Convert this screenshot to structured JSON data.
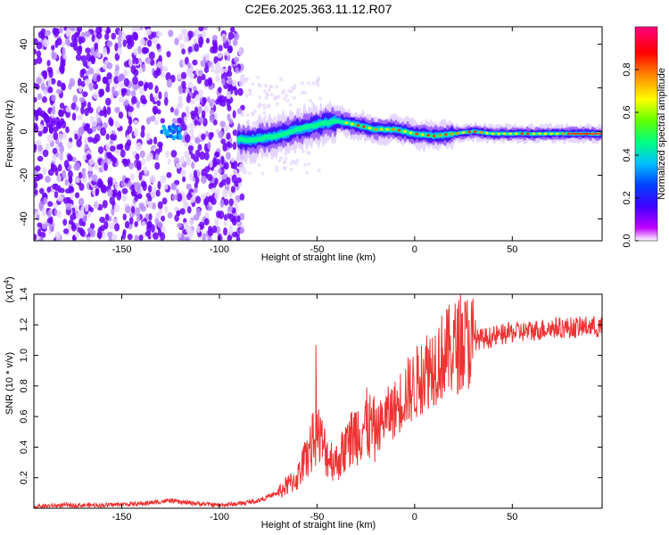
{
  "figure_title": "C2E6.2025.363.11.12.R07",
  "chart_data": [
    {
      "type": "heatmap",
      "title": "C2E6.2025.363.11.12.R07",
      "xlabel": "Height of straight line (km)",
      "ylabel": "Frequency (Hz)",
      "xlim": [
        -195,
        96
      ],
      "ylim": [
        -50,
        48
      ],
      "xticks": [
        -150,
        -100,
        -50,
        0,
        50
      ],
      "yticks": [
        -40,
        -20,
        0,
        20,
        40
      ],
      "xtick_labels": [
        "-150",
        "-100",
        "-50",
        "0",
        "50"
      ],
      "ytick_labels": [
        "-40",
        "-20",
        "0",
        "20",
        "40"
      ],
      "colorbar": {
        "label": "Normalized spectral amplitude",
        "range": [
          0,
          1
        ],
        "ticks": [
          0.0,
          0.2,
          0.4,
          0.6,
          0.8
        ],
        "tick_labels": [
          "0.0",
          "0.2",
          "0.4",
          "0.6",
          "0.8"
        ],
        "colormap": [
          "#ffffff",
          "#a000ff",
          "#3a00ff",
          "#0040ff",
          "#00c8ff",
          "#00ff80",
          "#80ff00",
          "#ffff00",
          "#ff8000",
          "#ff0000",
          "#ff0080"
        ]
      },
      "ridge": {
        "description_points_x": [
          -130,
          -85,
          -70,
          -60,
          -50,
          -40,
          -30,
          -20,
          -10,
          0,
          10,
          20,
          30,
          40,
          50,
          60,
          70,
          80,
          95
        ],
        "description_points_y": [
          -1,
          -4,
          -2,
          1,
          3,
          5,
          3,
          1,
          1,
          -1,
          -2,
          -1,
          0,
          -1,
          -1,
          -1,
          -1,
          -1,
          -1
        ]
      },
      "noise_region_end_km": -88,
      "gap_region_km": [
        -130,
        -122
      ]
    },
    {
      "type": "line",
      "xlabel": "Height of straight line (km)",
      "ylabel": "SNR (10 * v/v)",
      "y_scale_label": "(x10",
      "y_scale_exponent": "4",
      "xlim": [
        -195,
        96
      ],
      "ylim": [
        0,
        1.4
      ],
      "xticks": [
        -150,
        -100,
        -50,
        0,
        50
      ],
      "yticks": [
        0.2,
        0.4,
        0.6,
        0.8,
        1.0,
        1.2,
        1.4
      ],
      "xtick_labels": [
        "-150",
        "-100",
        "-50",
        "0",
        "50"
      ],
      "ytick_labels": [
        "0.2",
        "0.4",
        "0.6",
        "0.8",
        "1.0",
        "1.2",
        "1.4"
      ],
      "series": [
        {
          "name": "SNR",
          "color": "#ee3333",
          "x": [
            -195,
            -180,
            -160,
            -140,
            -125,
            -120,
            -110,
            -100,
            -90,
            -80,
            -70,
            -60,
            -55,
            -50,
            -45,
            -40,
            -35,
            -30,
            -25,
            -20,
            -15,
            -10,
            -5,
            0,
            5,
            10,
            15,
            20,
            25,
            30,
            40,
            50,
            60,
            70,
            80,
            90,
            95
          ],
          "values": [
            0.01,
            0.02,
            0.02,
            0.03,
            0.05,
            0.04,
            0.03,
            0.02,
            0.03,
            0.05,
            0.1,
            0.2,
            0.35,
            0.5,
            0.35,
            0.3,
            0.4,
            0.5,
            0.55,
            0.5,
            0.6,
            0.65,
            0.75,
            0.8,
            0.9,
            0.95,
            1.0,
            1.05,
            1.08,
            1.1,
            1.12,
            1.15,
            1.16,
            1.18,
            1.18,
            1.19,
            1.18
          ]
        }
      ]
    }
  ]
}
